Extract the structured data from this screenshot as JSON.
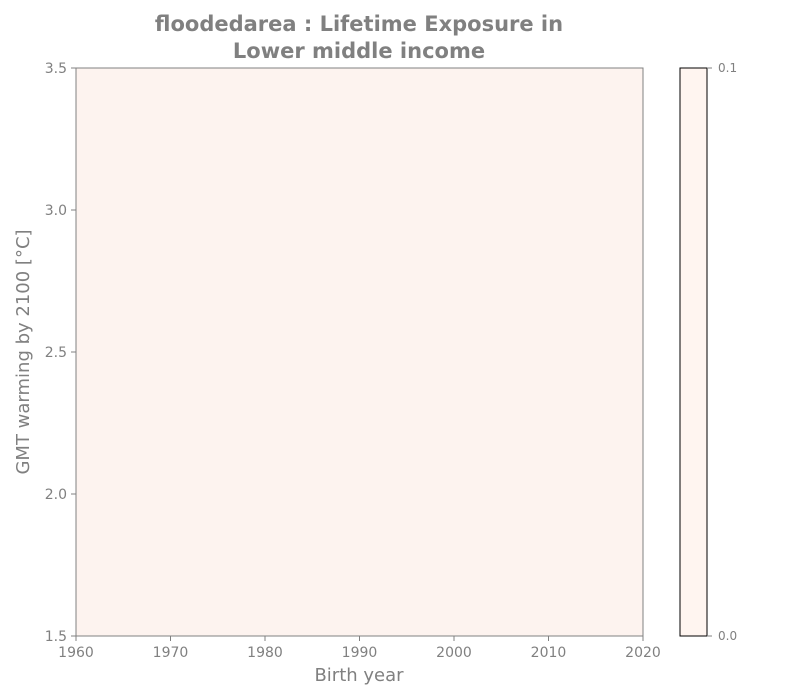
{
  "chart_data": {
    "type": "heatmap",
    "title_lines": [
      "floodedarea : Lifetime Exposure in",
      "Lower middle income"
    ],
    "xlabel": "Birth year",
    "ylabel": "GMT warming by 2100 [°C]",
    "xlim": [
      1960,
      2020
    ],
    "ylim": [
      1.5,
      3.5
    ],
    "xticks": [
      1960,
      1970,
      1980,
      1990,
      2000,
      2010,
      2020
    ],
    "xtick_labels": [
      "1960",
      "1970",
      "1980",
      "1990",
      "2000",
      "2010",
      "2020"
    ],
    "yticks": [
      1.5,
      2.0,
      2.5,
      3.0,
      3.5
    ],
    "ytick_labels": [
      "1.5",
      "2.0",
      "2.5",
      "3.0",
      "3.5"
    ],
    "values": [
      [
        0.0
      ]
    ],
    "colorbar": {
      "range": [
        0.0,
        0.1
      ],
      "ticks": [
        0.0,
        0.1
      ],
      "tick_labels": [
        "0.0",
        "0.1"
      ],
      "color_low": "#fff5f0",
      "color_high": "#fff5f0"
    },
    "fill_color": "#fdf3ef",
    "text_color": "#808080"
  }
}
